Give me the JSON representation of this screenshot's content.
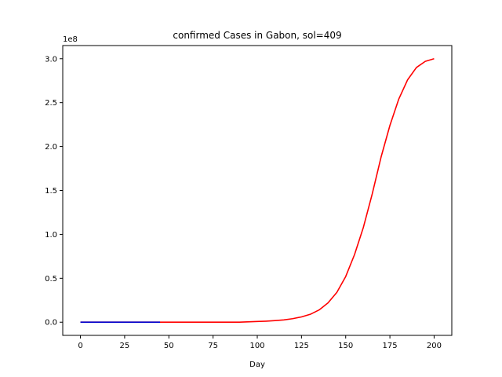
{
  "chart_data": {
    "type": "line",
    "title": "confirmed Cases in Gabon, sol=409",
    "xlabel": "Day",
    "ylabel": "",
    "y_offset_label": "1e8",
    "y_scale": 100000000,
    "xlim": [
      -10,
      210
    ],
    "ylim": [
      -15000000,
      315000000
    ],
    "xticks": [
      0,
      25,
      50,
      75,
      100,
      125,
      150,
      175,
      200
    ],
    "yticks": [
      0,
      50000000,
      100000000,
      150000000,
      200000000,
      250000000,
      300000000
    ],
    "ytick_labels": [
      "0.0",
      "0.5",
      "1.0",
      "1.5",
      "2.0",
      "2.5",
      "3.0"
    ],
    "grid": false,
    "series": [
      {
        "color": "#ff0000",
        "x": [
          0,
          10,
          20,
          30,
          40,
          50,
          60,
          70,
          80,
          90,
          100,
          105,
          110,
          115,
          120,
          125,
          130,
          135,
          140,
          145,
          150,
          155,
          160,
          165,
          170,
          175,
          180,
          185,
          190,
          195,
          200
        ],
        "y": [
          0,
          0,
          0,
          0,
          0,
          0,
          0,
          0,
          0,
          0,
          800000,
          1200000,
          1800000,
          2600000,
          4000000,
          6000000,
          9000000,
          14000000,
          22000000,
          34000000,
          52000000,
          77000000,
          108000000,
          146000000,
          188000000,
          224000000,
          254000000,
          276000000,
          290000000,
          297000000,
          300000000
        ]
      },
      {
        "color": "#0000cc",
        "x": [
          0,
          10,
          20,
          30,
          40,
          45
        ],
        "y": [
          0,
          0,
          0,
          0,
          0,
          0
        ]
      }
    ]
  }
}
